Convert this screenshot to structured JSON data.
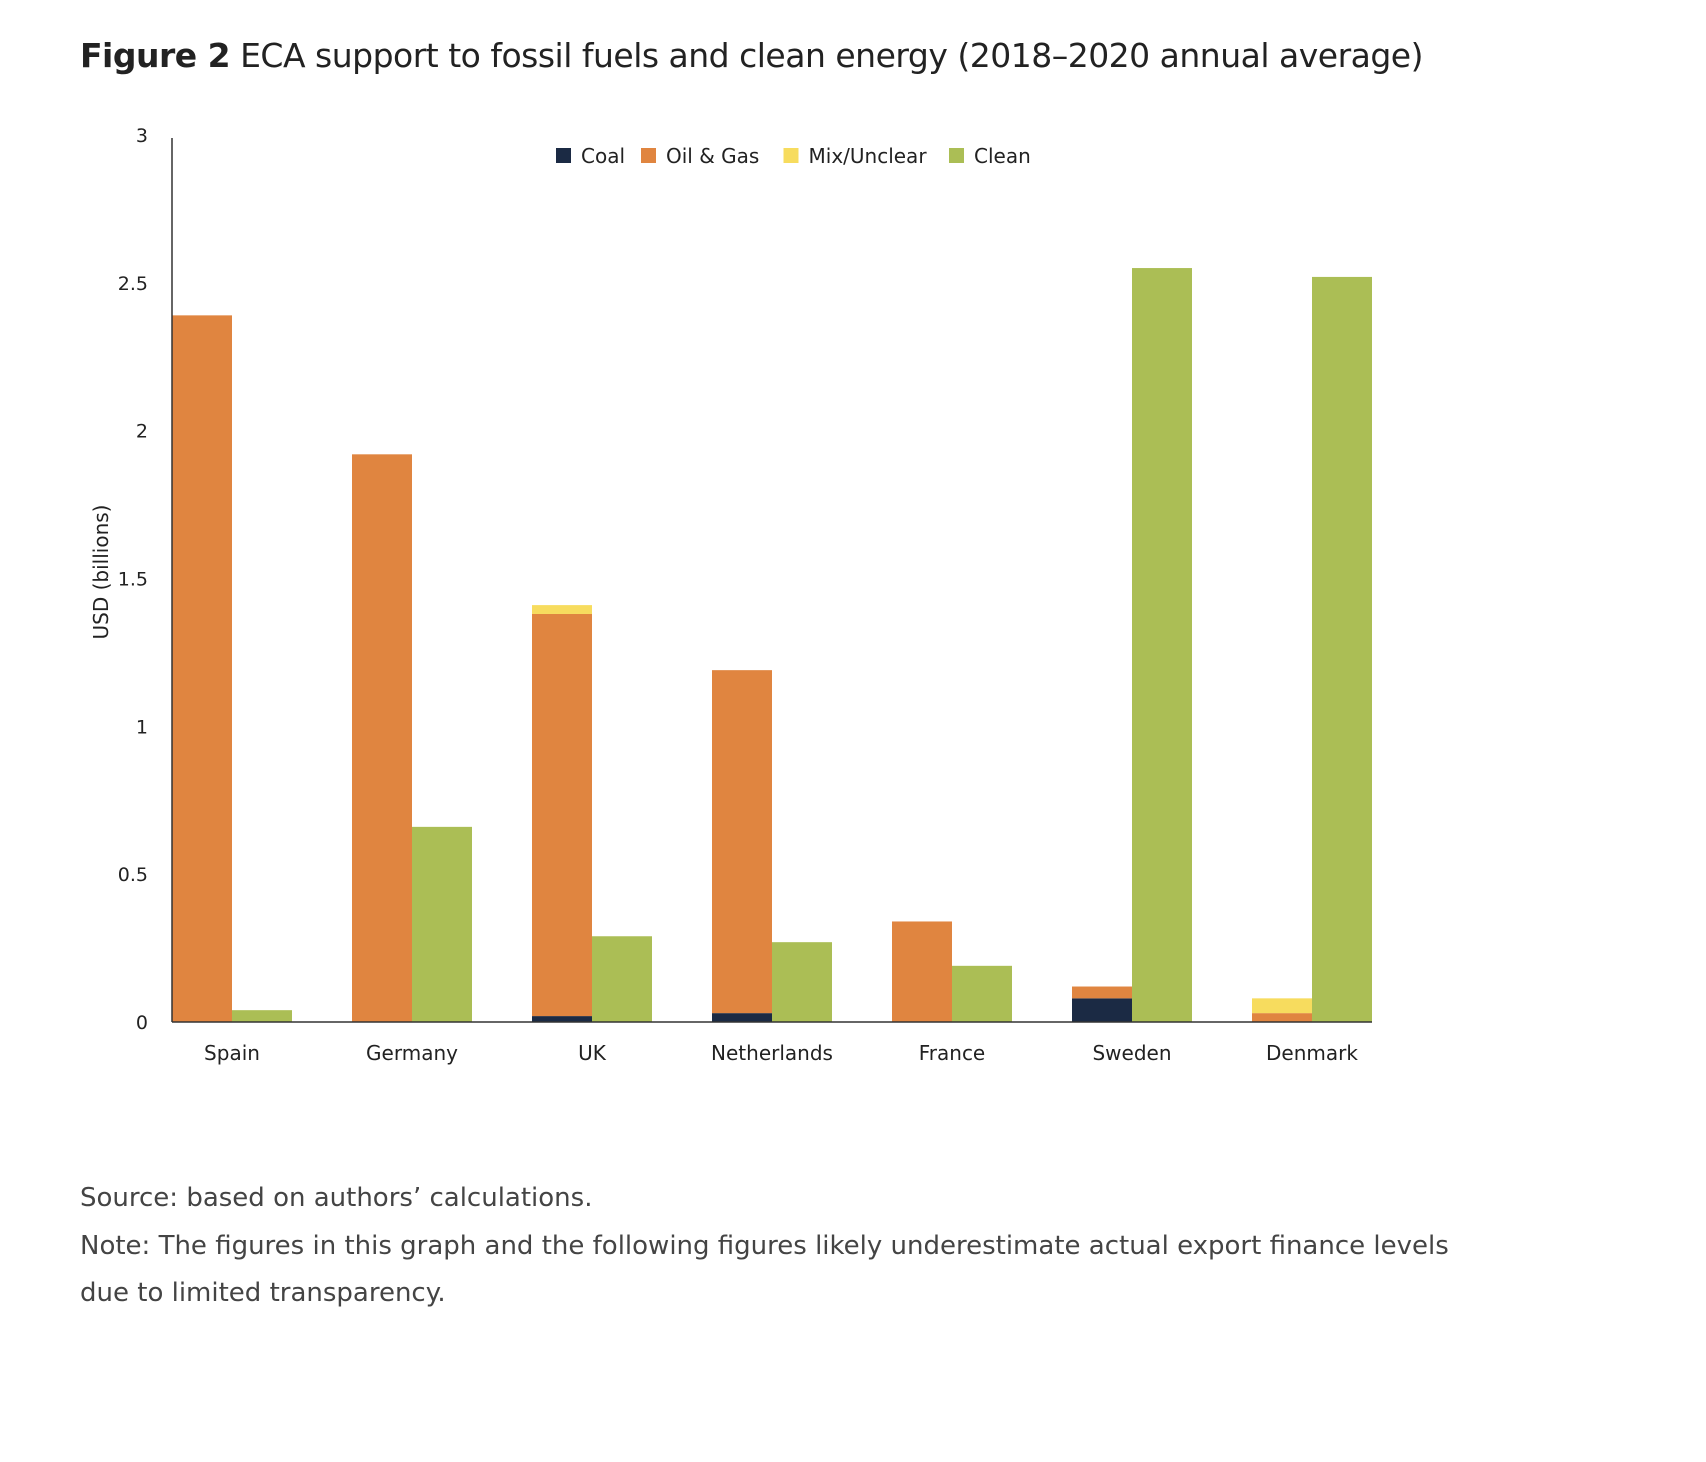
{
  "figure_label": "Figure 2",
  "chart_data": {
    "type": "bar",
    "stacked_groups": true,
    "title": "ECA support to fossil fuels and clean energy (2018–2020 annual average)",
    "xlabel": "",
    "ylabel": "USD (billions)",
    "ylim": [
      0,
      3
    ],
    "yticks": [
      "0",
      "0.5",
      "1",
      "1.5",
      "2",
      "2.5",
      "3"
    ],
    "grid": false,
    "legend_position": "top-center",
    "categories": [
      "Spain",
      "Germany",
      "UK",
      "Netherlands",
      "France",
      "Sweden",
      "Denmark"
    ],
    "series": [
      {
        "name": "Coal",
        "color": "#1b2a44",
        "stack": "fossil",
        "values": [
          0,
          0,
          0.02,
          0.03,
          0,
          0.08,
          0
        ]
      },
      {
        "name": "Oil & Gas",
        "color": "#e08540",
        "stack": "fossil",
        "values": [
          2.39,
          1.92,
          1.36,
          1.16,
          0.34,
          0.04,
          0.03
        ]
      },
      {
        "name": "Mix/Unclear",
        "color": "#f7dc5e",
        "stack": "fossil",
        "values": [
          0,
          0,
          0.03,
          0,
          0,
          0,
          0.05
        ]
      },
      {
        "name": "Clean",
        "color": "#abbe55",
        "stack": "clean",
        "values": [
          0.04,
          0.66,
          0.29,
          0.27,
          0.19,
          2.55,
          2.52
        ]
      }
    ]
  },
  "source": "Source: based on authors’ calculations.",
  "note": "Note: The figures in this graph and the following figures likely underestimate actual export finance levels due to limited transparency."
}
